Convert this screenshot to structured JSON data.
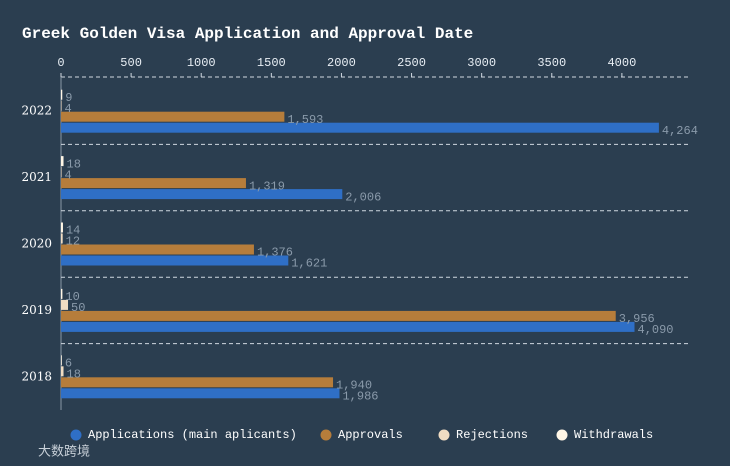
{
  "chart_data": {
    "type": "hbar",
    "title": "Greek Golden Visa Application and Approval Date",
    "categories": [
      "2022",
      "2021",
      "2020",
      "2019",
      "2018"
    ],
    "series": [
      {
        "name": "Applications (main aplicants)",
        "color": "#2f6fc6",
        "values": [
          4264,
          2006,
          1621,
          4090,
          1986
        ],
        "value_labels": [
          "4,264",
          "2,006",
          "1,621",
          "4,090",
          "1,986"
        ]
      },
      {
        "name": "Approvals",
        "color": "#b67d3b",
        "values": [
          1593,
          1319,
          1376,
          3956,
          1940
        ],
        "value_labels": [
          "1,593",
          "1,319",
          "1,376",
          "3,956",
          "1,940"
        ]
      },
      {
        "name": "Rejections",
        "color": "#f0dcc2",
        "values": [
          4,
          4,
          12,
          50,
          18
        ]
      },
      {
        "name": "Withdrawals",
        "color": "#fff6e6",
        "values": [
          9,
          18,
          14,
          10,
          6
        ]
      }
    ],
    "xlim": [
      0,
      4500
    ],
    "xticks": [
      0,
      500,
      1000,
      1500,
      2000,
      2500,
      3000,
      3500,
      4000
    ],
    "legend": "bottom",
    "watermark": "大数跨境"
  }
}
